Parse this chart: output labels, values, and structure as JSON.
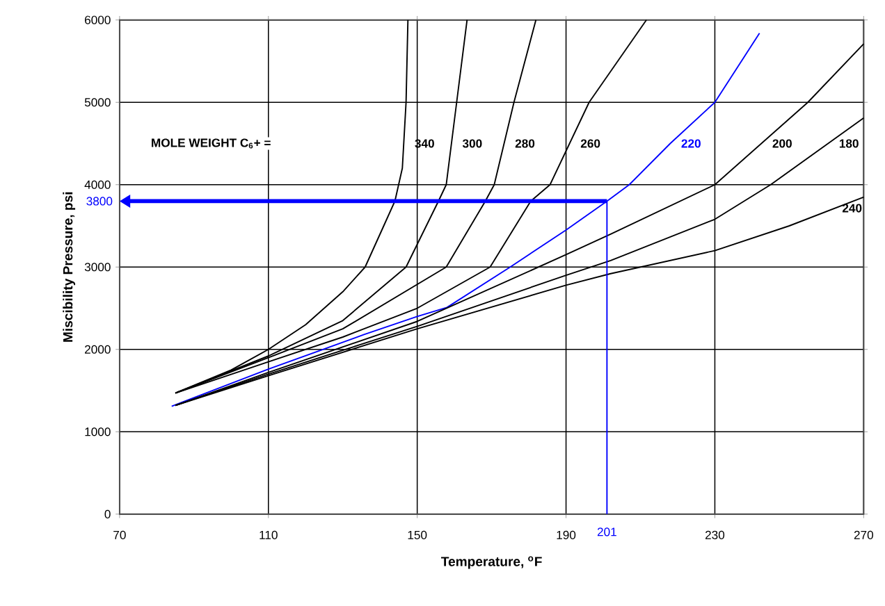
{
  "chart_data": {
    "type": "line",
    "xlabel": "Temperature, $^{o}$F",
    "ylabel": "Miscibility Pressure, psi",
    "xlim": [
      70,
      270
    ],
    "xticks": [
      70,
      110,
      150,
      190,
      230,
      270
    ],
    "ylim": [
      0,
      6000
    ],
    "yticks": [
      0,
      1000,
      2000,
      3000,
      4000,
      5000,
      6000
    ],
    "grid": true,
    "marker": "none",
    "line_style": "solid",
    "series": [
      {
        "name": "340",
        "color": "#000000",
        "x": [
          85,
          100,
          110,
          120,
          130,
          136,
          141,
          144,
          146,
          147,
          147.5
        ],
        "values": [
          1470,
          1750,
          2000,
          2300,
          2700,
          3000,
          3500,
          3800,
          4200,
          5000,
          6000
        ]
      },
      {
        "name": "300",
        "color": "#000000",
        "x": [
          85,
          110,
          130,
          147,
          155.7,
          157.8,
          160.6,
          163.4
        ],
        "values": [
          1470,
          1920,
          2350,
          3000,
          3800,
          4000,
          5000,
          6000
        ]
      },
      {
        "name": "280",
        "color": "#000000",
        "x": [
          85,
          110,
          130,
          157.8,
          168.3,
          170.7,
          176,
          181.9
        ],
        "values": [
          1470,
          1900,
          2250,
          3000,
          3800,
          4000,
          5000,
          6000
        ]
      },
      {
        "name": "260",
        "color": "#000000",
        "x": [
          85,
          110,
          130,
          150,
          169.6,
          180.5,
          185.7,
          196.2,
          211.6
        ],
        "values": [
          1470,
          1850,
          2150,
          2500,
          3000,
          3800,
          4000,
          5000,
          6000
        ]
      },
      {
        "name": "220",
        "color": "#0000ff",
        "x": [
          84,
          110,
          135.7,
          150,
          158,
          175,
          190,
          201,
          207,
          218,
          230,
          242
        ],
        "values": [
          1310,
          1760,
          2180,
          2400,
          2510,
          3000,
          3450,
          3800,
          4000,
          4500,
          5000,
          5840
        ]
      },
      {
        "name": "200",
        "color": "#000000",
        "x": [
          85,
          110,
          150,
          190,
          202,
          230,
          255,
          270
        ],
        "values": [
          1320,
          1720,
          2340,
          3150,
          3400,
          4000,
          5000,
          5710
        ]
      },
      {
        "name": "180",
        "color": "#000000",
        "x": [
          85,
          110,
          150,
          190,
          202,
          230,
          245,
          270
        ],
        "values": [
          1320,
          1700,
          2280,
          2900,
          3080,
          3580,
          4000,
          4810
        ]
      },
      {
        "name": "240",
        "color": "#000000",
        "x": [
          85,
          110,
          150,
          190,
          202,
          230,
          250,
          270
        ],
        "values": [
          1320,
          1680,
          2250,
          2780,
          2920,
          3200,
          3500,
          3850
        ]
      }
    ],
    "ref_lines": [
      {
        "axis": "y",
        "value": 3800,
        "label": "3800",
        "color": "#0000ff"
      },
      {
        "axis": "x",
        "value": 201,
        "label": "201",
        "color": "#0000ff"
      }
    ],
    "annotations": [
      "MOLE WEIGHT C$_{6}$+ ="
    ]
  }
}
